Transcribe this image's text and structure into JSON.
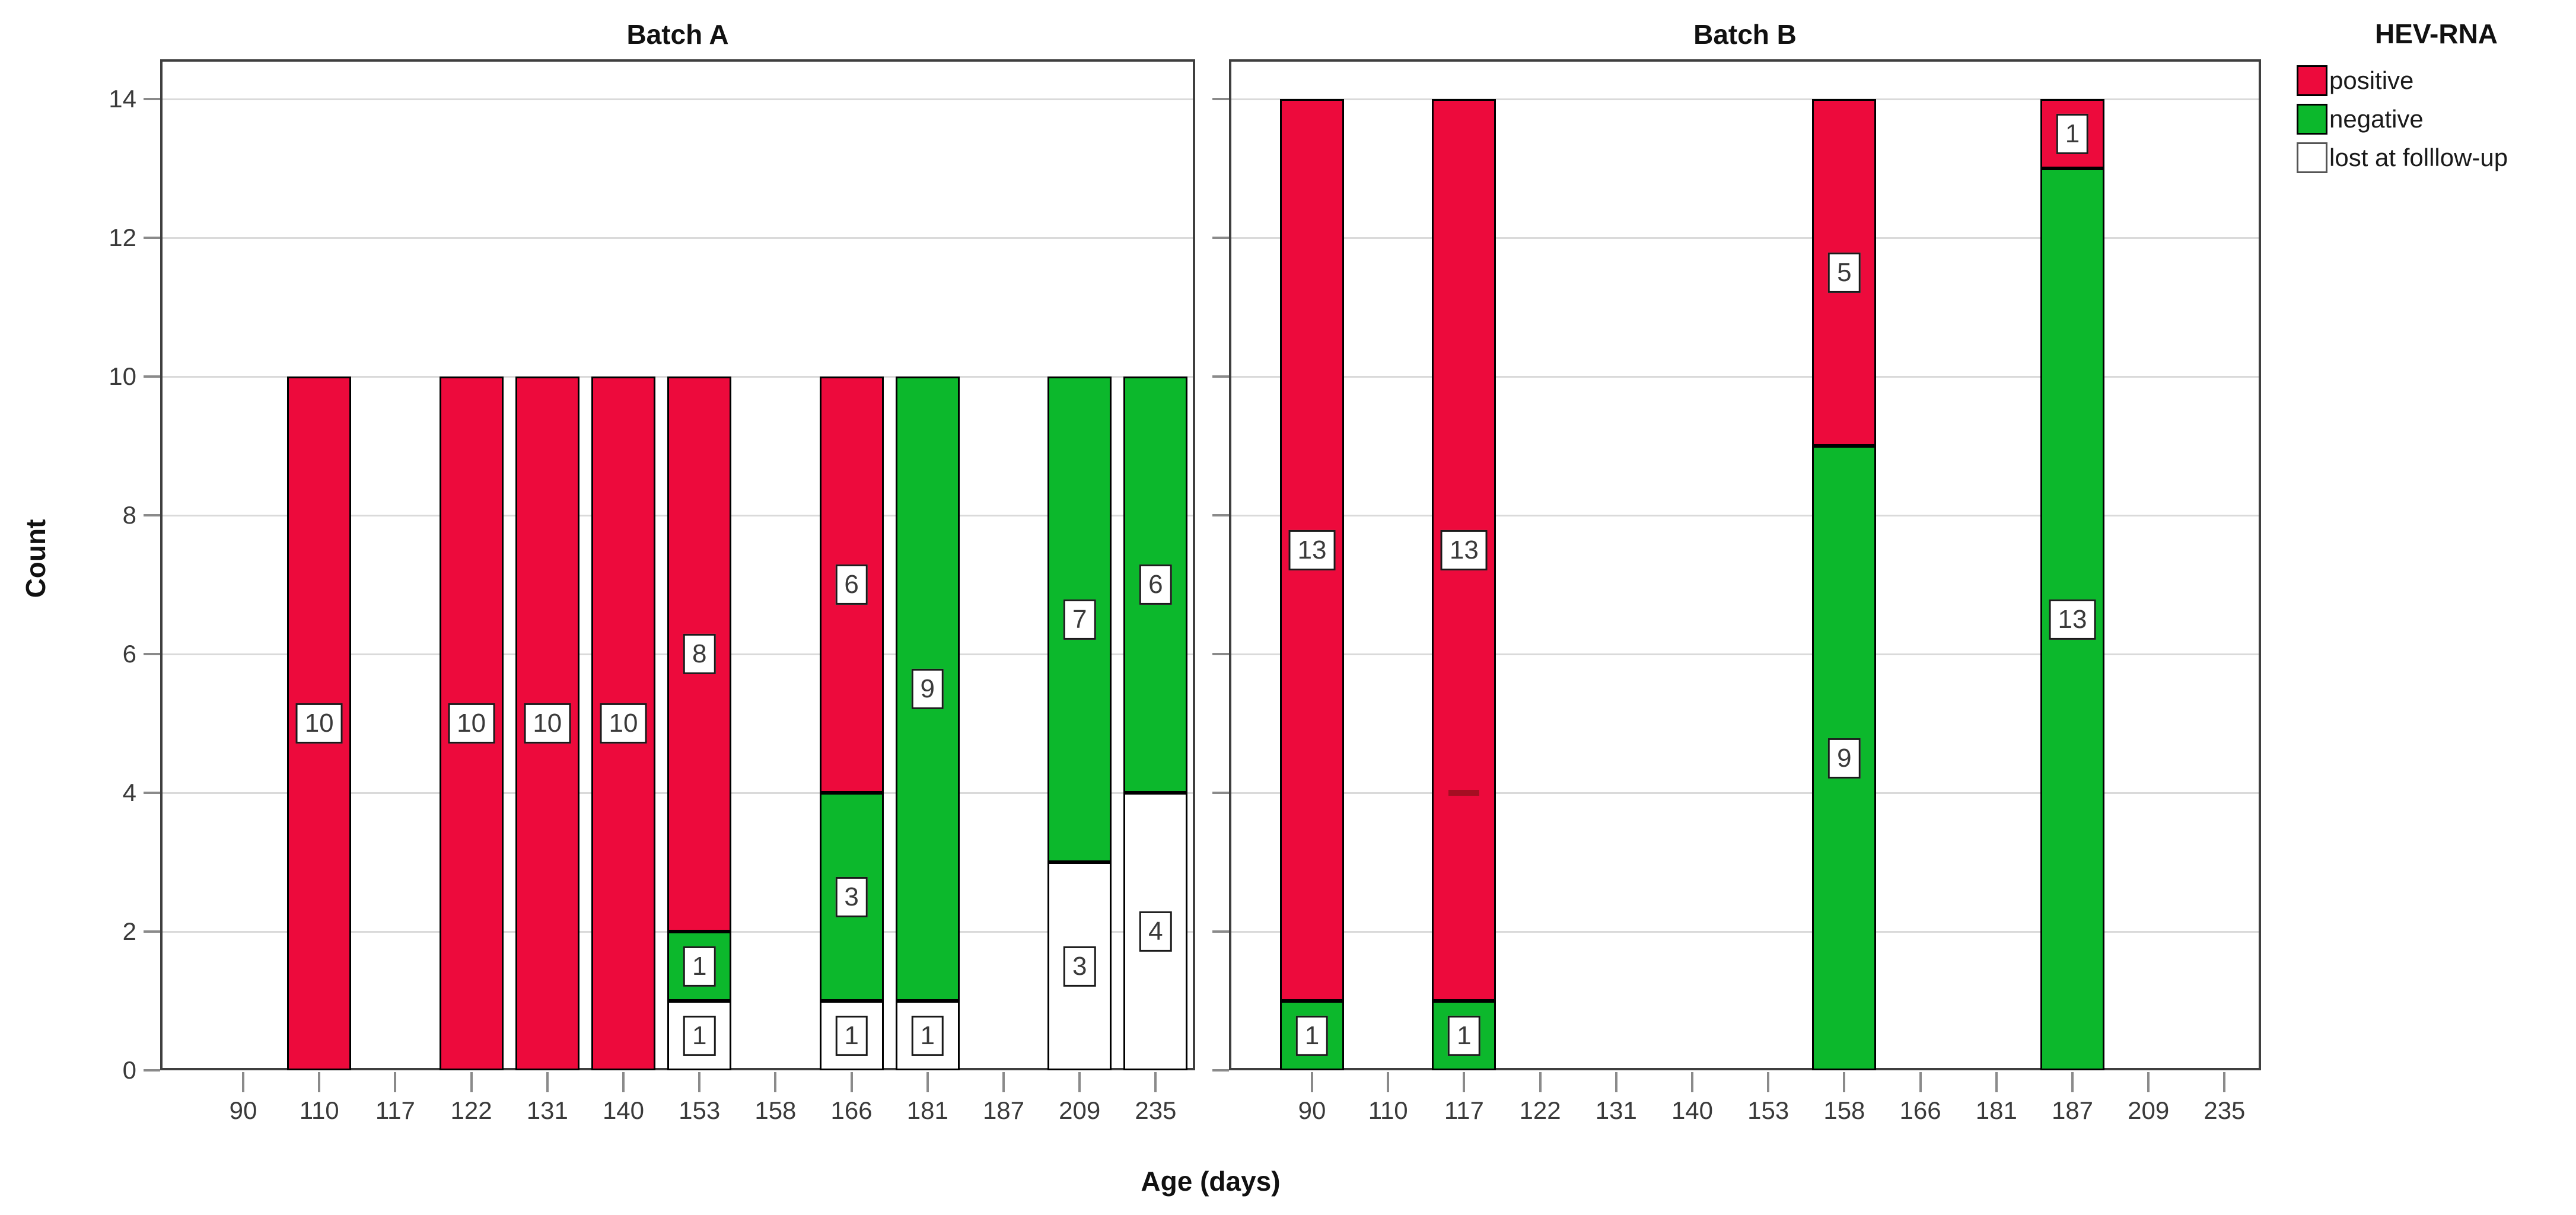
{
  "chart_data": {
    "type": "bar",
    "stacked": true,
    "title": "",
    "xlabel": "Age (days)",
    "ylabel": "Count",
    "ylim": [
      0,
      14.57
    ],
    "yticks": [
      0,
      2,
      4,
      6,
      8,
      10,
      12,
      14
    ],
    "grid": "horizontal-light-gray",
    "categories": [
      "90",
      "110",
      "117",
      "122",
      "131",
      "140",
      "153",
      "158",
      "166",
      "181",
      "187",
      "209",
      "235"
    ],
    "colors": {
      "positive": "#ED0A3C",
      "negative": "#0CB82C",
      "lost at folllow-up": "#FFFFFF"
    },
    "panels": [
      {
        "title": "Batch A",
        "bars": [
          {
            "category": "110",
            "segments": [
              {
                "status": "positive",
                "value": 10
              }
            ]
          },
          {
            "category": "122",
            "segments": [
              {
                "status": "positive",
                "value": 10
              }
            ]
          },
          {
            "category": "131",
            "segments": [
              {
                "status": "positive",
                "value": 10
              }
            ]
          },
          {
            "category": "140",
            "segments": [
              {
                "status": "positive",
                "value": 10
              }
            ]
          },
          {
            "category": "153",
            "segments": [
              {
                "status": "lost at folllow-up",
                "value": 1
              },
              {
                "status": "negative",
                "value": 1
              },
              {
                "status": "positive",
                "value": 8
              }
            ]
          },
          {
            "category": "166",
            "segments": [
              {
                "status": "lost at folllow-up",
                "value": 1
              },
              {
                "status": "negative",
                "value": 3
              },
              {
                "status": "positive",
                "value": 6
              }
            ]
          },
          {
            "category": "181",
            "segments": [
              {
                "status": "lost at folllow-up",
                "value": 1
              },
              {
                "status": "negative",
                "value": 9
              }
            ]
          },
          {
            "category": "209",
            "segments": [
              {
                "status": "lost at folllow-up",
                "value": 3
              },
              {
                "status": "negative",
                "value": 7
              }
            ]
          },
          {
            "category": "235",
            "segments": [
              {
                "status": "lost at folllow-up",
                "value": 4
              },
              {
                "status": "negative",
                "value": 6
              }
            ]
          }
        ]
      },
      {
        "title": "Batch B",
        "bars": [
          {
            "category": "90",
            "segments": [
              {
                "status": "negative",
                "value": 1
              },
              {
                "status": "positive",
                "value": 13
              }
            ]
          },
          {
            "category": "117",
            "segments": [
              {
                "status": "negative",
                "value": 1
              },
              {
                "status": "positive",
                "value": 13
              }
            ]
          },
          {
            "category": "158",
            "segments": [
              {
                "status": "negative",
                "value": 9
              },
              {
                "status": "positive",
                "value": 5
              }
            ]
          },
          {
            "category": "187",
            "segments": [
              {
                "status": "negative",
                "value": 13
              },
              {
                "status": "positive",
                "value": 1
              }
            ]
          }
        ]
      }
    ],
    "annotations": [
      {
        "panel": "Batch B",
        "category": "117",
        "y": 4,
        "shape": "dash",
        "color": "#A50E22"
      }
    ],
    "legend_position": "top-right-outside"
  },
  "legend": {
    "title": "HEV-RNA",
    "items": [
      {
        "label": "positive",
        "color": "#ED0A3C",
        "border": "#000000"
      },
      {
        "label": "negative",
        "color": "#0CB82C",
        "border": "#000000"
      },
      {
        "label": "lost at folllow-up",
        "color": "#FFFFFF",
        "border": "#555555"
      }
    ]
  }
}
